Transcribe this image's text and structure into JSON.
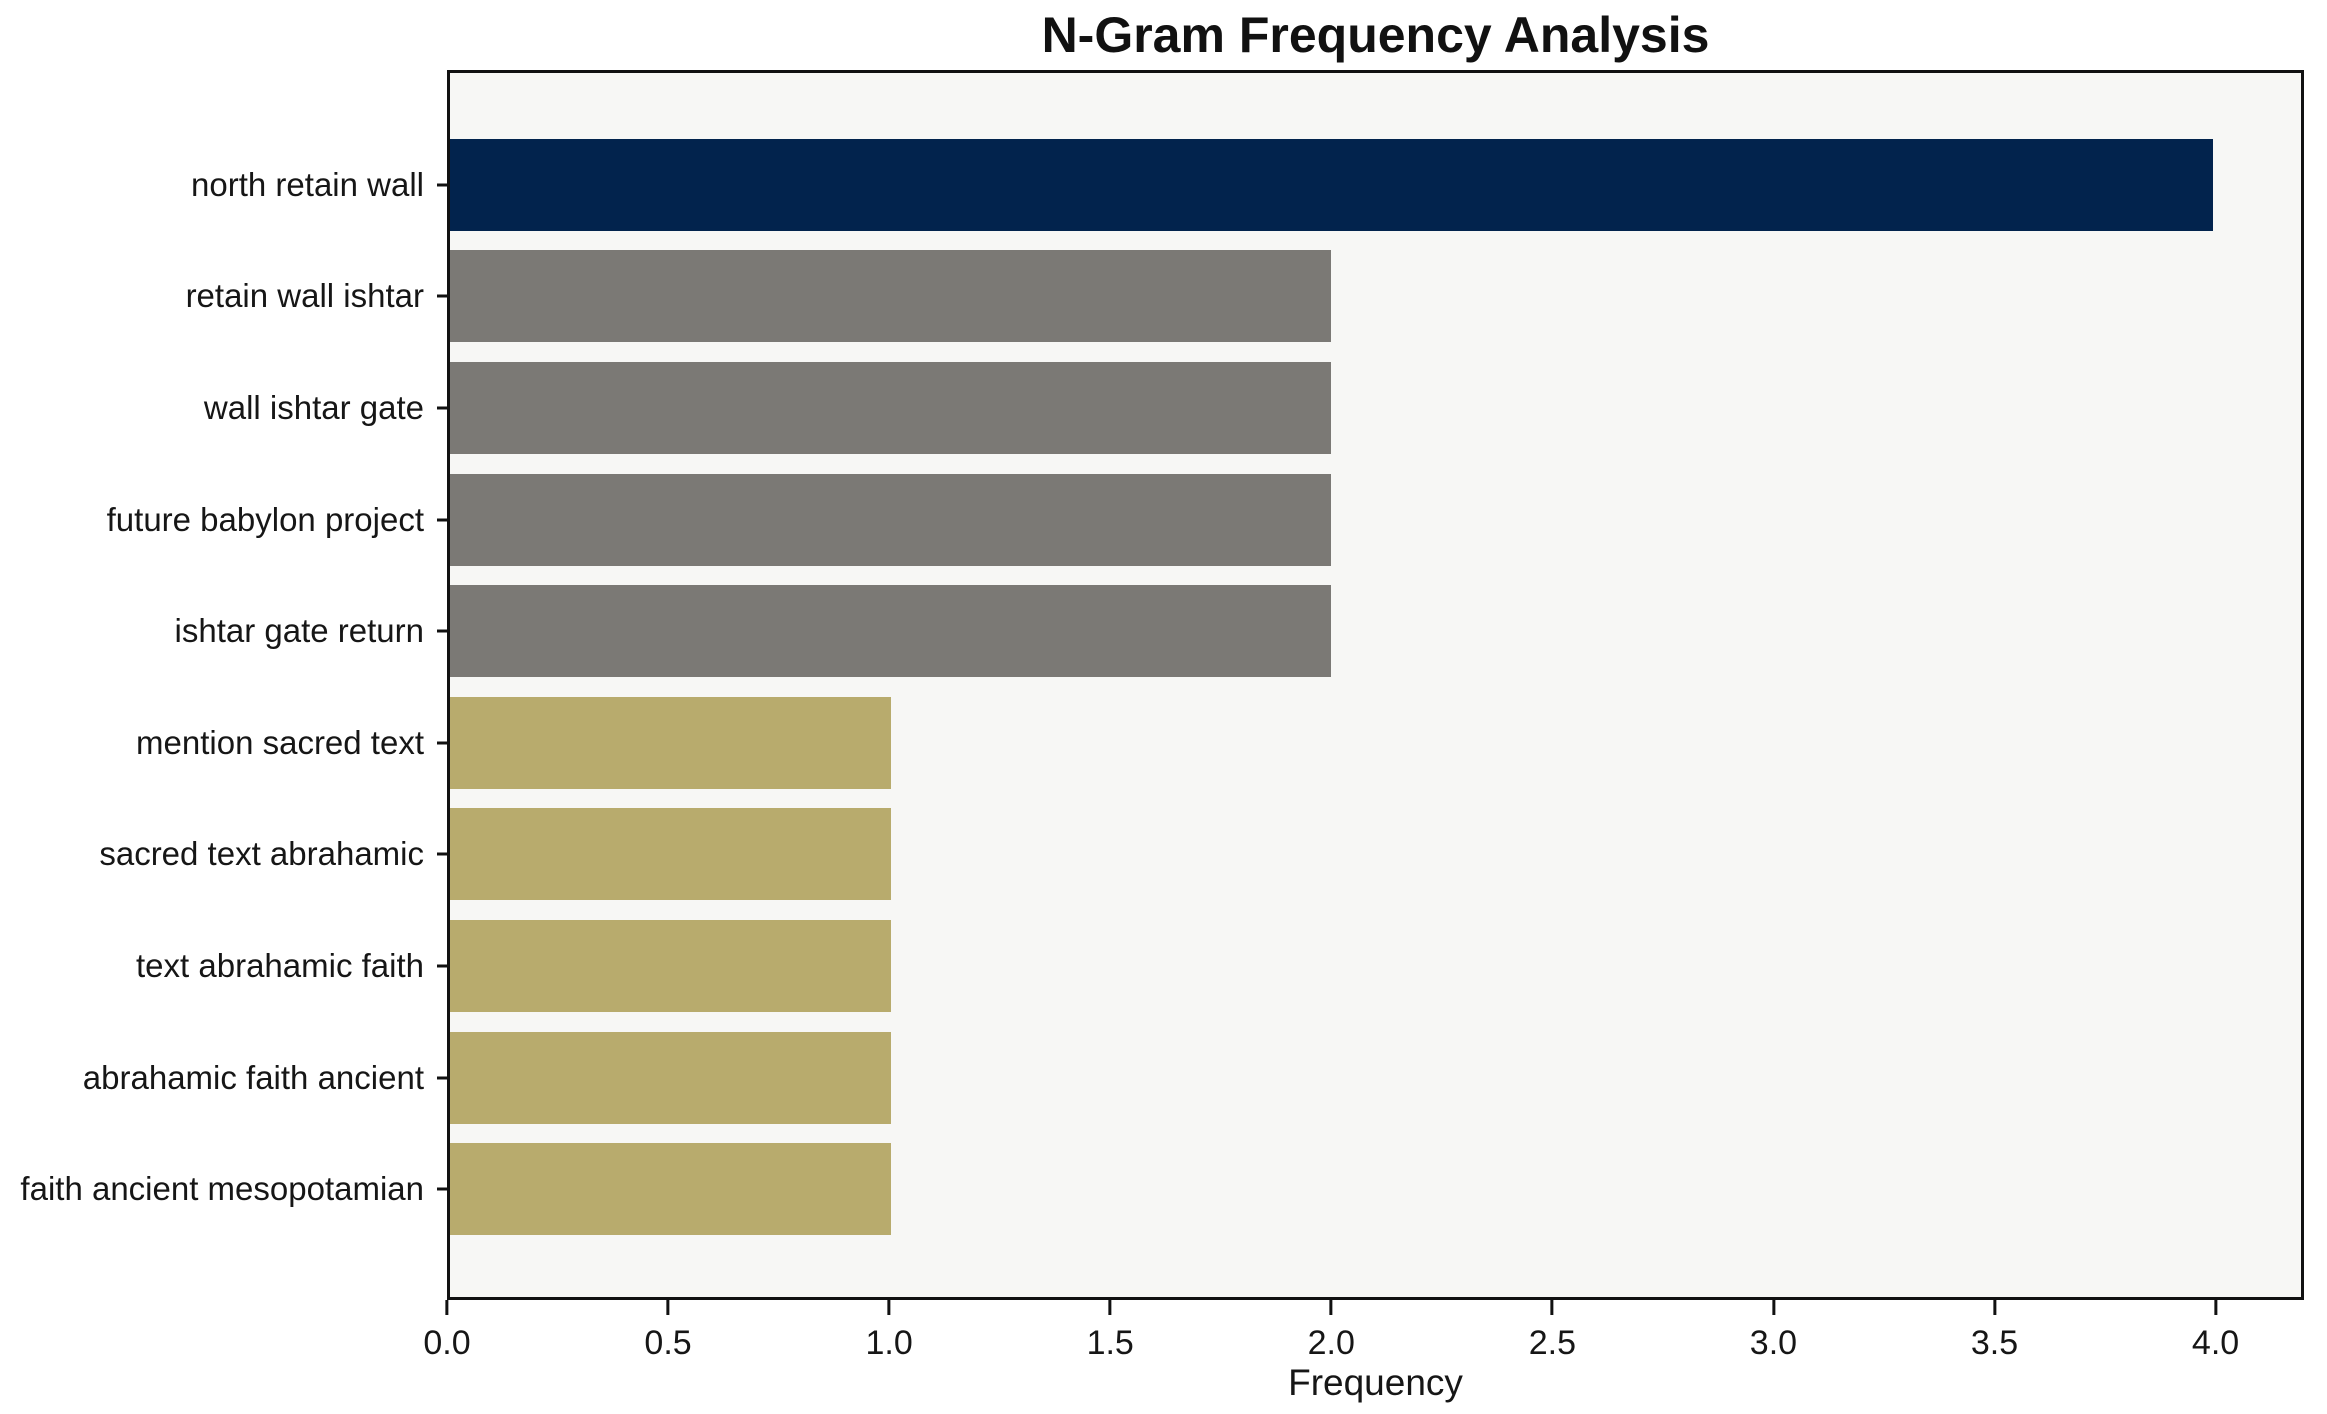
{
  "chart_data": {
    "type": "bar",
    "orientation": "horizontal",
    "title": "N-Gram Frequency Analysis",
    "xlabel": "Frequency",
    "ylabel": "",
    "categories": [
      "north retain wall",
      "retain wall ishtar",
      "wall ishtar gate",
      "future babylon project",
      "ishtar gate return",
      "mention sacred text",
      "sacred text abrahamic",
      "text abrahamic faith",
      "abrahamic faith ancient",
      "faith ancient mesopotamian"
    ],
    "values": [
      4,
      2,
      2,
      2,
      2,
      1,
      1,
      1,
      1,
      1
    ],
    "bar_colors": [
      "#02234d",
      "#7b7975",
      "#7b7975",
      "#7b7975",
      "#7b7975",
      "#b8ab6d",
      "#b8ab6d",
      "#b8ab6d",
      "#b8ab6d",
      "#b8ab6d"
    ],
    "xlim": [
      0,
      4.2
    ],
    "xticks": [
      0,
      0.5,
      1,
      1.5,
      2,
      2.5,
      3,
      3.5,
      4
    ],
    "xtick_labels": [
      "0.0",
      "0.5",
      "1.0",
      "1.5",
      "2.0",
      "2.5",
      "3.0",
      "3.5",
      "4.0"
    ],
    "grid": false,
    "legend": null,
    "plot_background": "#f7f7f5",
    "figure_background": "#ffffff",
    "frame_color": "#111111"
  }
}
